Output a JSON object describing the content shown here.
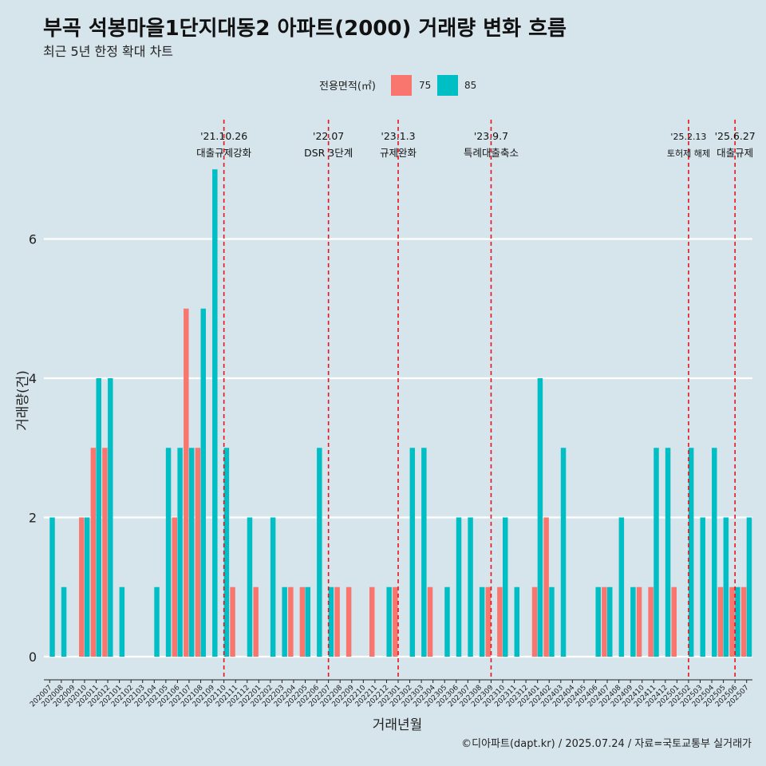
{
  "chart_data": {
    "type": "bar",
    "title": "부곡 석봉마을1단지대동2 아파트(2000) 거래량 변화 흐름",
    "subtitle": "최근 5년 한정 확대 차트",
    "xlabel": "거래년월",
    "ylabel": "거래량(건)",
    "ylim": [
      0,
      7
    ],
    "yticks": [
      0,
      2,
      4,
      6
    ],
    "grid": true,
    "legend": {
      "title": "전용면적(㎡)",
      "position": "top"
    },
    "categories": [
      "202007",
      "202008",
      "202009",
      "202010",
      "202011",
      "202012",
      "202101",
      "202102",
      "202103",
      "202104",
      "202105",
      "202106",
      "202107",
      "202108",
      "202109",
      "202110",
      "202111",
      "202112",
      "202201",
      "202202",
      "202203",
      "202204",
      "202205",
      "202206",
      "202207",
      "202208",
      "202209",
      "202210",
      "202211",
      "202212",
      "202301",
      "202302",
      "202303",
      "202304",
      "202305",
      "202306",
      "202307",
      "202308",
      "202309",
      "202310",
      "202311",
      "202312",
      "202401",
      "202402",
      "202403",
      "202404",
      "202405",
      "202406",
      "202407",
      "202408",
      "202409",
      "202410",
      "202411",
      "202412",
      "202501",
      "202502",
      "202503",
      "202504",
      "202505",
      "202506",
      "202507"
    ],
    "series": [
      {
        "name": "75",
        "color": "#f8766d",
        "values": [
          0,
          0,
          0,
          2,
          3,
          3,
          0,
          0,
          0,
          0,
          0,
          2,
          5,
          3,
          0,
          0,
          1,
          0,
          1,
          0,
          0,
          1,
          1,
          0,
          0,
          1,
          1,
          0,
          1,
          0,
          1,
          0,
          0,
          1,
          0,
          0,
          0,
          0,
          1,
          1,
          0,
          0,
          1,
          2,
          0,
          0,
          0,
          0,
          1,
          0,
          0,
          1,
          1,
          0,
          1,
          0,
          0,
          0,
          1,
          1,
          1
        ]
      },
      {
        "name": "85",
        "color": "#00bfc4",
        "values": [
          2,
          1,
          0,
          2,
          4,
          4,
          1,
          0,
          0,
          1,
          3,
          3,
          3,
          5,
          7,
          3,
          0,
          2,
          0,
          2,
          1,
          0,
          1,
          3,
          1,
          0,
          0,
          0,
          0,
          1,
          0,
          3,
          3,
          0,
          1,
          2,
          2,
          1,
          0,
          2,
          1,
          0,
          4,
          1,
          3,
          0,
          0,
          1,
          1,
          2,
          1,
          0,
          3,
          3,
          0,
          3,
          2,
          3,
          2,
          1,
          2
        ]
      }
    ],
    "annotations": [
      {
        "category": "202110",
        "date": "'21.10.26",
        "label": "대출규제강화"
      },
      {
        "category": "202207",
        "date": "'22.07",
        "label": "DSR 3단계"
      },
      {
        "category": "202301",
        "date": "'23.1.3",
        "label": "규제완화"
      },
      {
        "category": "202309",
        "date": "'23.9.7",
        "label": "특례대출축소"
      },
      {
        "category": "202502",
        "date": "'25.2.13",
        "label": "토허제 해제"
      },
      {
        "category": "202506",
        "date": "'25.6.27",
        "label": "대출규제"
      }
    ],
    "annotation_color": "#e8141c",
    "caption": "©디아파트(dapt.kr) / 2025.07.24 / 자료=국토교통부 실거래가"
  }
}
